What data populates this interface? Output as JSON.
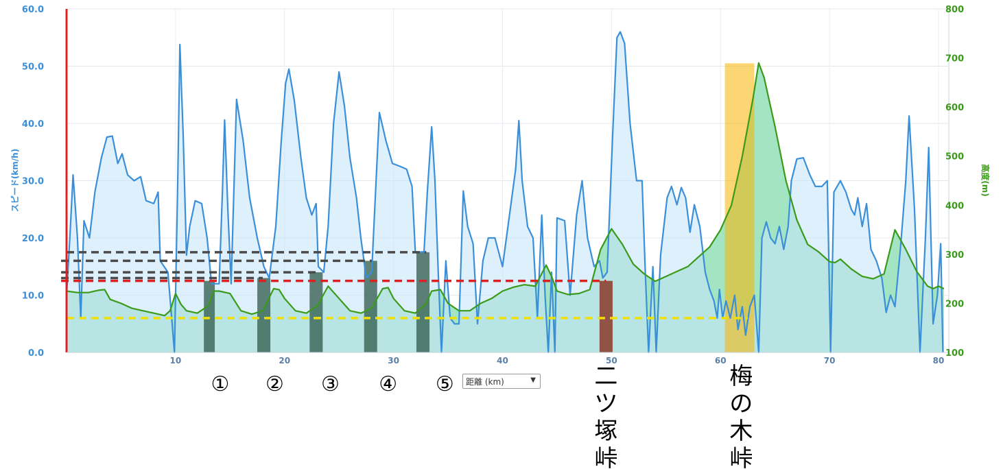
{
  "chart_data": {
    "type": "area",
    "xlabel": "距離 (km)",
    "x_range": [
      0,
      80
    ],
    "x_ticks": [
      10,
      20,
      30,
      40,
      50,
      60,
      70,
      80
    ],
    "left_axis": {
      "label": "スピード(km/h)",
      "range": [
        0,
        60
      ],
      "ticks": [
        "0.0",
        "10.0",
        "20.0",
        "30.0",
        "40.0",
        "50.0",
        "60.0"
      ]
    },
    "right_axis": {
      "label": "高度(m)",
      "range": [
        100,
        800
      ],
      "ticks": [
        "100",
        "200",
        "300",
        "400",
        "500",
        "600",
        "700",
        "800"
      ]
    },
    "series": [
      {
        "name": "スピード(km/h)",
        "axis": "left",
        "color": "#3b8fd8",
        "fill": "#c6e6f8",
        "points": [
          [
            0,
            10
          ],
          [
            0.3,
            20
          ],
          [
            0.6,
            31
          ],
          [
            1.0,
            20
          ],
          [
            1.3,
            6
          ],
          [
            1.6,
            23
          ],
          [
            2.1,
            20
          ],
          [
            2.6,
            28
          ],
          [
            3.2,
            34
          ],
          [
            3.7,
            37.6
          ],
          [
            4.2,
            37.8
          ],
          [
            4.7,
            33
          ],
          [
            5.1,
            34.7
          ],
          [
            5.6,
            31
          ],
          [
            6.2,
            30
          ],
          [
            6.8,
            30.7
          ],
          [
            7.3,
            26.5
          ],
          [
            8.0,
            26
          ],
          [
            8.4,
            28
          ],
          [
            8.6,
            16
          ],
          [
            9.3,
            14
          ],
          [
            9.9,
            0
          ],
          [
            10.2,
            30
          ],
          [
            10.4,
            53.8
          ],
          [
            10.7,
            38
          ],
          [
            11.0,
            17
          ],
          [
            11.3,
            22
          ],
          [
            11.8,
            26.5
          ],
          [
            12.4,
            26
          ],
          [
            12.9,
            20
          ],
          [
            13.3,
            12
          ],
          [
            14.0,
            12
          ],
          [
            14.3,
            28
          ],
          [
            14.5,
            40.6
          ],
          [
            14.8,
            25
          ],
          [
            15.1,
            12
          ],
          [
            15.3,
            25
          ],
          [
            15.6,
            44.2
          ],
          [
            16.2,
            37
          ],
          [
            16.8,
            27
          ],
          [
            17.5,
            20
          ],
          [
            18.1,
            15
          ],
          [
            18.6,
            13
          ],
          [
            19.2,
            22
          ],
          [
            19.7,
            37
          ],
          [
            20.1,
            47
          ],
          [
            20.4,
            49.5
          ],
          [
            20.9,
            44
          ],
          [
            21.5,
            34
          ],
          [
            22.0,
            27
          ],
          [
            22.5,
            24
          ],
          [
            22.9,
            26
          ],
          [
            23.1,
            15
          ],
          [
            23.6,
            14
          ],
          [
            24.0,
            22
          ],
          [
            24.5,
            40
          ],
          [
            25.0,
            49
          ],
          [
            25.5,
            43
          ],
          [
            26.0,
            34
          ],
          [
            26.6,
            27
          ],
          [
            27.0,
            20
          ],
          [
            27.5,
            13
          ],
          [
            28.0,
            14
          ],
          [
            28.4,
            30
          ],
          [
            28.7,
            41.9
          ],
          [
            29.3,
            37
          ],
          [
            29.9,
            33
          ],
          [
            30.6,
            32.5
          ],
          [
            31.2,
            32
          ],
          [
            31.7,
            29
          ],
          [
            32.0,
            17.5
          ],
          [
            32.4,
            17.5
          ],
          [
            32.8,
            17.6
          ],
          [
            33.1,
            28
          ],
          [
            33.5,
            39.4
          ],
          [
            33.8,
            30
          ],
          [
            34.1,
            14
          ],
          [
            34.4,
            0
          ],
          [
            34.8,
            16
          ],
          [
            35.2,
            6
          ],
          [
            35.6,
            5
          ],
          [
            36.0,
            5
          ],
          [
            36.4,
            28.2
          ],
          [
            36.8,
            22
          ],
          [
            37.3,
            19
          ],
          [
            37.7,
            5
          ],
          [
            38.2,
            16
          ],
          [
            38.7,
            20
          ],
          [
            39.3,
            20
          ],
          [
            40.0,
            15
          ],
          [
            40.5,
            22
          ],
          [
            41.2,
            32
          ],
          [
            41.5,
            40.5
          ],
          [
            41.8,
            30
          ],
          [
            42.3,
            22
          ],
          [
            42.8,
            20
          ],
          [
            43.2,
            6
          ],
          [
            43.6,
            24
          ],
          [
            43.9,
            10
          ],
          [
            44.2,
            0
          ],
          [
            44.5,
            14
          ],
          [
            44.8,
            0
          ],
          [
            45.0,
            23.5
          ],
          [
            45.7,
            23
          ],
          [
            46.2,
            10
          ],
          [
            46.8,
            24
          ],
          [
            47.3,
            30
          ],
          [
            47.8,
            20
          ],
          [
            48.4,
            15
          ],
          [
            48.9,
            16
          ],
          [
            49.2,
            13
          ],
          [
            49.6,
            14
          ],
          [
            50.1,
            38
          ],
          [
            50.5,
            55
          ],
          [
            50.8,
            56
          ],
          [
            51.2,
            54
          ],
          [
            51.7,
            40
          ],
          [
            52.3,
            30
          ],
          [
            52.8,
            30
          ],
          [
            53.1,
            14
          ],
          [
            53.4,
            0
          ],
          [
            53.8,
            15
          ],
          [
            54.1,
            0
          ],
          [
            54.5,
            17
          ],
          [
            55.1,
            27
          ],
          [
            55.5,
            29
          ],
          [
            56.0,
            25.8
          ],
          [
            56.4,
            28.8
          ],
          [
            56.8,
            27
          ],
          [
            57.2,
            21
          ],
          [
            57.6,
            25.8
          ],
          [
            58.1,
            22
          ],
          [
            58.6,
            14
          ],
          [
            59.0,
            11
          ],
          [
            59.4,
            9
          ],
          [
            59.7,
            6
          ],
          [
            59.9,
            11
          ],
          [
            60.2,
            6
          ],
          [
            60.5,
            9
          ],
          [
            60.9,
            6
          ],
          [
            61.3,
            10
          ],
          [
            61.6,
            4
          ],
          [
            62.0,
            8
          ],
          [
            62.3,
            3
          ],
          [
            62.7,
            8
          ],
          [
            63.1,
            10
          ],
          [
            63.5,
            0
          ],
          [
            63.8,
            20
          ],
          [
            64.2,
            22.8
          ],
          [
            64.6,
            20
          ],
          [
            65.0,
            19
          ],
          [
            65.4,
            22
          ],
          [
            65.8,
            18
          ],
          [
            66.2,
            22
          ],
          [
            66.5,
            30
          ],
          [
            67.0,
            33.8
          ],
          [
            67.6,
            34
          ],
          [
            68.2,
            31
          ],
          [
            68.7,
            29
          ],
          [
            69.3,
            29
          ],
          [
            69.8,
            30
          ],
          [
            70.1,
            0
          ],
          [
            70.4,
            28
          ],
          [
            71.0,
            30
          ],
          [
            71.5,
            28
          ],
          [
            72.0,
            25
          ],
          [
            72.3,
            24
          ],
          [
            72.6,
            27
          ],
          [
            73.0,
            22
          ],
          [
            73.4,
            26
          ],
          [
            73.8,
            18
          ],
          [
            74.3,
            16
          ],
          [
            74.8,
            13
          ],
          [
            75.2,
            7
          ],
          [
            75.6,
            10
          ],
          [
            76.0,
            8
          ],
          [
            76.5,
            18
          ],
          [
            77.0,
            30
          ],
          [
            77.3,
            41.3
          ],
          [
            77.8,
            25
          ],
          [
            78.3,
            0
          ],
          [
            78.8,
            20
          ],
          [
            79.1,
            35.8
          ],
          [
            79.5,
            5
          ],
          [
            79.9,
            10
          ],
          [
            80.2,
            19
          ],
          [
            80.4,
            0
          ]
        ]
      },
      {
        "name": "高度(m)",
        "axis": "right",
        "color": "#3a9a1a",
        "fill": "#9ee3c0",
        "points": [
          [
            0,
            225
          ],
          [
            1,
            222
          ],
          [
            2,
            222
          ],
          [
            3,
            227
          ],
          [
            3.5,
            228
          ],
          [
            4,
            208
          ],
          [
            5,
            200
          ],
          [
            6,
            190
          ],
          [
            7,
            185
          ],
          [
            8,
            180
          ],
          [
            9,
            175
          ],
          [
            9.5,
            185
          ],
          [
            10,
            220
          ],
          [
            10.5,
            198
          ],
          [
            11,
            185
          ],
          [
            12,
            180
          ],
          [
            13,
            195
          ],
          [
            13.5,
            225
          ],
          [
            14,
            225
          ],
          [
            15,
            220
          ],
          [
            16,
            185
          ],
          [
            17,
            178
          ],
          [
            18,
            185
          ],
          [
            19,
            230
          ],
          [
            19.5,
            228
          ],
          [
            20,
            210
          ],
          [
            21,
            185
          ],
          [
            22,
            180
          ],
          [
            23,
            195
          ],
          [
            24,
            235
          ],
          [
            25,
            210
          ],
          [
            26,
            185
          ],
          [
            27,
            180
          ],
          [
            28,
            190
          ],
          [
            29,
            230
          ],
          [
            29.5,
            232
          ],
          [
            30,
            210
          ],
          [
            31,
            185
          ],
          [
            32,
            180
          ],
          [
            33,
            200
          ],
          [
            33.5,
            225
          ],
          [
            34.3,
            228
          ],
          [
            35,
            200
          ],
          [
            36,
            185
          ],
          [
            37,
            185
          ],
          [
            38,
            200
          ],
          [
            39,
            210
          ],
          [
            40,
            225
          ],
          [
            41,
            233
          ],
          [
            42,
            238
          ],
          [
            43,
            235
          ],
          [
            44,
            278
          ],
          [
            44.5,
            255
          ],
          [
            45,
            225
          ],
          [
            46,
            218
          ],
          [
            47,
            220
          ],
          [
            48,
            228
          ],
          [
            49,
            310
          ],
          [
            50,
            352
          ],
          [
            51,
            320
          ],
          [
            52,
            280
          ],
          [
            53,
            260
          ],
          [
            54,
            245
          ],
          [
            55,
            255
          ],
          [
            56,
            265
          ],
          [
            57,
            275
          ],
          [
            58,
            295
          ],
          [
            59,
            315
          ],
          [
            60,
            350
          ],
          [
            61,
            400
          ],
          [
            62,
            500
          ],
          [
            63,
            620
          ],
          [
            63.5,
            690
          ],
          [
            64,
            660
          ],
          [
            65,
            560
          ],
          [
            66,
            450
          ],
          [
            67,
            370
          ],
          [
            68,
            320
          ],
          [
            69,
            305
          ],
          [
            70,
            285
          ],
          [
            70.5,
            283
          ],
          [
            71,
            290
          ],
          [
            72,
            270
          ],
          [
            73,
            255
          ],
          [
            74,
            250
          ],
          [
            75,
            260
          ],
          [
            76,
            350
          ],
          [
            77,
            310
          ],
          [
            78,
            265
          ],
          [
            79,
            235
          ],
          [
            79.5,
            230
          ],
          [
            80,
            235
          ],
          [
            80.5,
            230
          ]
        ]
      }
    ],
    "vertical_markers": [
      {
        "x": 0,
        "color": "#e02020"
      }
    ],
    "reference_lines": [
      {
        "y": 17.5,
        "x_from": 0,
        "x_to": 33,
        "color": "#4a4a4a",
        "axis": "left"
      },
      {
        "y": 16.0,
        "x_from": -0.5,
        "x_to": 28,
        "color": "#4a4a4a",
        "axis": "left"
      },
      {
        "y": 14.0,
        "x_from": -0.5,
        "x_to": 23,
        "color": "#4a4a4a",
        "axis": "left"
      },
      {
        "y": 13.0,
        "x_from": -0.5,
        "x_to": 18,
        "color": "#4a4a4a",
        "axis": "left"
      },
      {
        "y": 12.5,
        "x_from": -0.5,
        "x_to": 49.5,
        "color": "#e02020",
        "axis": "left"
      },
      {
        "y": 6.0,
        "x_from": 0,
        "x_to": 62.5,
        "color": "#f0e000",
        "axis": "left"
      }
    ],
    "highlight_bars": [
      {
        "x_from": 12.6,
        "x_to": 13.6,
        "top": 12.5,
        "color": "#2f5a4a",
        "opacity": 0.75
      },
      {
        "x_from": 17.5,
        "x_to": 18.7,
        "top": 13.0,
        "color": "#2f5a4a",
        "opacity": 0.75
      },
      {
        "x_from": 22.3,
        "x_to": 23.5,
        "top": 14.0,
        "color": "#2f5a4a",
        "opacity": 0.75
      },
      {
        "x_from": 27.3,
        "x_to": 28.5,
        "top": 16.0,
        "color": "#2f5a4a",
        "opacity": 0.75
      },
      {
        "x_from": 32.1,
        "x_to": 33.3,
        "top": 17.5,
        "color": "#2f5a4a",
        "opacity": 0.75
      },
      {
        "x_from": 48.9,
        "x_to": 50.1,
        "top": 12.5,
        "color": "#8a3a2a",
        "opacity": 0.85
      },
      {
        "x_from": 60.4,
        "x_to": 63.1,
        "top": 50.5,
        "color": "#f7b500",
        "opacity": 0.55
      }
    ],
    "annotations": [
      {
        "text": "①",
        "x": 14.1
      },
      {
        "text": "②",
        "x": 19.1
      },
      {
        "text": "③",
        "x": 24.2
      },
      {
        "text": "④",
        "x": 29.5
      },
      {
        "text": "⑤",
        "x": 34.7
      }
    ],
    "pass_labels": [
      {
        "text": "二ツ塚峠",
        "x": 49.5
      },
      {
        "text": "梅の木峠",
        "x": 61.9
      }
    ]
  }
}
